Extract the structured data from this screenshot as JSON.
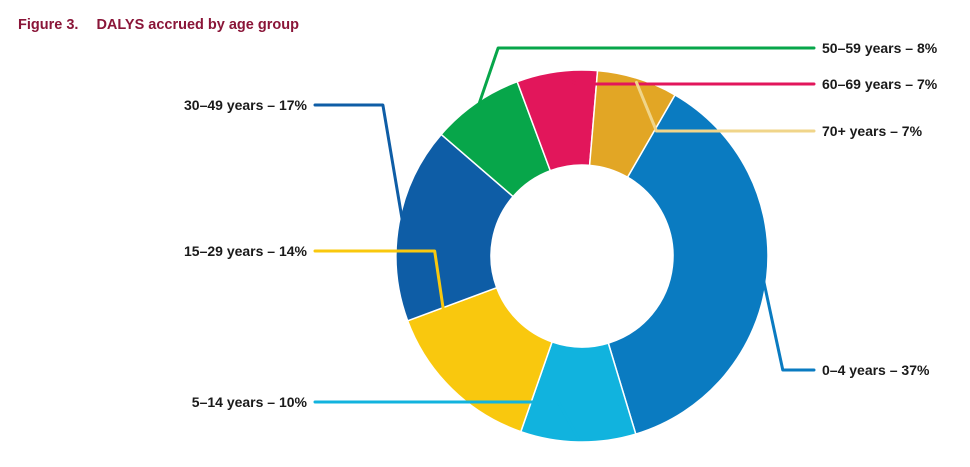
{
  "figure": {
    "number": "Figure 3.",
    "title": "DALYS accrued by age group"
  },
  "chart_data": {
    "type": "pie",
    "variant": "donut",
    "title": "DALYS accrued by age group",
    "unit": "%",
    "slices": [
      {
        "label": "0–4 years – 37%",
        "category": "0–4 years",
        "value": 37,
        "color": "#0a7bc1",
        "label_side": "right"
      },
      {
        "label": "5–14 years – 10%",
        "category": "5–14 years",
        "value": 10,
        "color": "#11b3de",
        "label_side": "left"
      },
      {
        "label": "15–29 years – 14%",
        "category": "15–29 years",
        "value": 14,
        "color": "#f9c80e",
        "label_side": "left"
      },
      {
        "label": "30–49 years – 17%",
        "category": "30–49 years",
        "value": 17,
        "color": "#0e5da6",
        "label_side": "left"
      },
      {
        "label": "50–59 years – 8%",
        "category": "50–59 years",
        "value": 8,
        "color": "#07a64a",
        "label_side": "right"
      },
      {
        "label": "60–69 years – 7%",
        "category": "60–69 years",
        "value": 7,
        "color": "#e2165b",
        "label_side": "right"
      },
      {
        "label": "70+ years – 7%",
        "category": "70+ years",
        "value": 7,
        "color": "#e2a625",
        "label_side": "right"
      }
    ],
    "leader_colors": {
      "70+ years": "#f0d58a"
    }
  }
}
